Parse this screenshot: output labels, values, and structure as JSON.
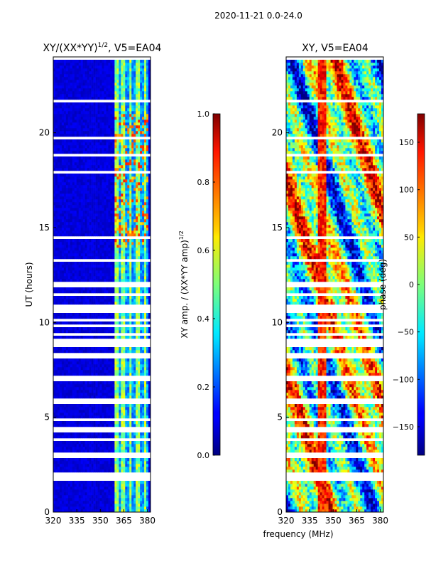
{
  "suptitle": "2020-11-21 0.0-24.0",
  "shared_xlabel": "frequency (MHz)",
  "chart_data": [
    {
      "type": "heatmap",
      "title_main": "XY/(XX*YY)",
      "title_sup": "1/2",
      "title_rest": ", V5=EA04",
      "ylabel": "UT (hours)",
      "xlim": [
        320,
        382
      ],
      "ylim": [
        0,
        24
      ],
      "x_ticks": [
        320,
        335,
        350,
        365,
        380
      ],
      "y_ticks": [
        0,
        5,
        10,
        15,
        20
      ],
      "colorbar": {
        "label_main": "XY amp. / (XX*YY amp)",
        "label_sup": "1/2",
        "range": [
          0.0,
          1.0
        ],
        "ticks": [
          "0.0",
          "0.2",
          "0.4",
          "0.6",
          "0.8",
          "1.0"
        ],
        "tick_values": [
          0.0,
          0.2,
          0.4,
          0.6,
          0.8,
          1.0
        ]
      }
    },
    {
      "type": "heatmap",
      "title": "XY, V5=EA04",
      "xlim": [
        320,
        382
      ],
      "ylim": [
        0,
        24
      ],
      "x_ticks": [
        320,
        335,
        350,
        365,
        380
      ],
      "y_ticks": [
        0,
        5,
        10,
        15,
        20
      ],
      "colorbar": {
        "label": "phase (deg)",
        "range": [
          -180,
          180
        ],
        "ticks": [
          "−150",
          "−100",
          "−50",
          "0",
          "50",
          "100",
          "150"
        ],
        "tick_values": [
          -150,
          -100,
          -50,
          0,
          50,
          100,
          150
        ]
      }
    }
  ]
}
